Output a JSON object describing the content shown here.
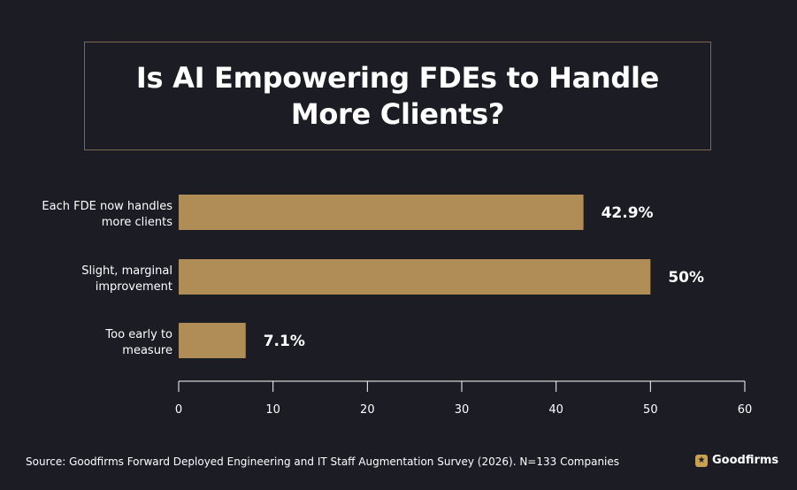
{
  "brand_color": "#b08d57",
  "chart_data": {
    "type": "bar",
    "orientation": "horizontal",
    "title": "Is AI Empowering FDEs to Handle More Clients?",
    "categories": [
      [
        "Each FDE now handles",
        "more clients"
      ],
      [
        "Slight, marginal",
        "improvement"
      ],
      [
        "Too early to",
        "measure"
      ]
    ],
    "values": [
      42.9,
      50,
      7.1
    ],
    "value_labels": [
      "42.9%",
      "50%",
      "7.1%"
    ],
    "xlim": [
      0,
      60
    ],
    "xticks": [
      0,
      10,
      20,
      30,
      40,
      50,
      60
    ],
    "bar_color": "#b08d57",
    "grid": false,
    "legend": "none"
  },
  "footer": {
    "source": "Source: Goodfirms Forward Deployed Engineering and IT Staff Augmentation Survey (2026). N=133 Companies",
    "brand_name": "Goodfirms",
    "brand_icon": "star-badge-icon"
  }
}
